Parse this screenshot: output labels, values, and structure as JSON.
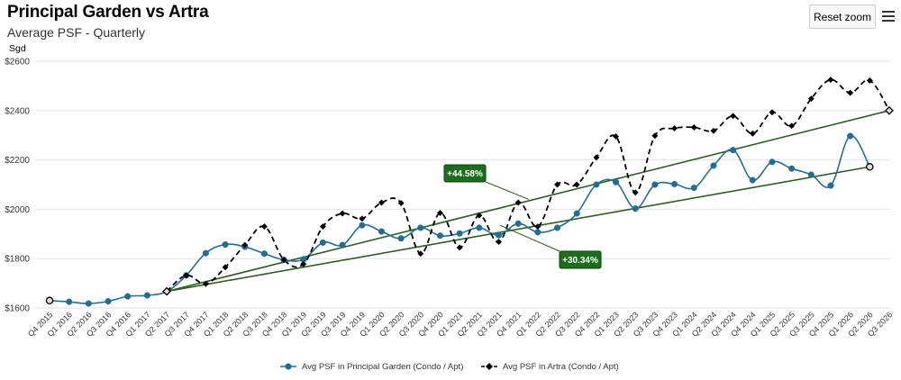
{
  "header": {
    "title": "Principal Garden vs Artra",
    "subtitle": "Average PSF - Quarterly",
    "reset_zoom_label": "Reset zoom",
    "menu_icon": "hamburger-menu-icon"
  },
  "chart_data": {
    "type": "line",
    "title": "Principal Garden vs Artra",
    "subtitle": "Average PSF - Quarterly",
    "ylabel": "Sgd",
    "xlabel": "",
    "ylim": [
      1600,
      2600
    ],
    "yticks": [
      1600,
      1800,
      2000,
      2200,
      2400,
      2600
    ],
    "ytick_labels": [
      "$1600",
      "$1800",
      "$2000",
      "$2200",
      "$2400",
      "$2600"
    ],
    "grid": true,
    "legend_position": "bottom",
    "categories": [
      "Q4 2015",
      "Q1 2016",
      "Q2 2016",
      "Q3 2016",
      "Q4 2016",
      "Q1 2017",
      "Q2 2017",
      "Q3 2017",
      "Q4 2017",
      "Q1 2018",
      "Q2 2018",
      "Q3 2018",
      "Q4 2018",
      "Q1 2019",
      "Q2 2019",
      "Q3 2019",
      "Q4 2019",
      "Q1 2020",
      "Q2 2020",
      "Q3 2020",
      "Q4 2020",
      "Q1 2021",
      "Q2 2021",
      "Q3 2021",
      "Q4 2021",
      "Q1 2022",
      "Q2 2022",
      "Q3 2022",
      "Q4 2022",
      "Q1 2023",
      "Q2 2023",
      "Q3 2023",
      "Q4 2023",
      "Q1 2024",
      "Q2 2024",
      "Q3 2024",
      "Q4 2024",
      "Q1 2025",
      "Q2 2025",
      "Q3 2025",
      "Q4 2025",
      "Q1 2026",
      "Q2 2026",
      "Q3 2026"
    ],
    "series": [
      {
        "name": "Avg PSF in Principal Garden (Condo / Apt)",
        "color": "#1f6f95",
        "dash": "solid",
        "marker": "circle",
        "values": [
          1630,
          1625,
          1618,
          1627,
          1647,
          1651,
          1667,
          1732,
          1822,
          1857,
          1848,
          1820,
          1795,
          1797,
          1865,
          1855,
          1935,
          1910,
          1882,
          1925,
          1893,
          1902,
          1925,
          1895,
          1942,
          1907,
          1925,
          1983,
          2100,
          2110,
          2003,
          2100,
          2102,
          2087,
          2177,
          2240,
          2118,
          2192,
          2165,
          2140,
          2096,
          2297,
          2172,
          null
        ]
      },
      {
        "name": "Avg PSF in Artra (Condo / Apt)",
        "color": "#000000",
        "dash": "dashed",
        "marker": "diamond",
        "values": [
          null,
          null,
          null,
          null,
          null,
          null,
          1667,
          1732,
          1698,
          1765,
          1855,
          1930,
          1795,
          1778,
          1930,
          1983,
          1962,
          2027,
          2025,
          1820,
          1985,
          1845,
          1975,
          1868,
          2027,
          1930,
          2100,
          2100,
          2210,
          2295,
          2068,
          2298,
          2328,
          2332,
          2318,
          2378,
          2307,
          2393,
          2338,
          2448,
          2525,
          2472,
          2522,
          2400
        ]
      }
    ],
    "trendlines": [
      {
        "series": "Avg PSF in Principal Garden (Condo / Apt)",
        "from": {
          "x": "Q2 2017",
          "y": 1667
        },
        "to": {
          "x": "Q2 2026",
          "y": 2172
        },
        "color": "#2d5e1e"
      },
      {
        "series": "Avg PSF in Artra (Condo / Apt)",
        "from": {
          "x": "Q2 2017",
          "y": 1667
        },
        "to": {
          "x": "Q3 2026",
          "y": 2400
        },
        "color": "#2d5e1e"
      }
    ],
    "annotations": [
      {
        "text": "+44.58%",
        "target_x": "Q1 2022",
        "target_y": 2040,
        "color": "#1b6e1b"
      },
      {
        "text": "+30.34%",
        "target_x": "Q4 2021",
        "target_y": 1935,
        "color": "#1b6e1b"
      }
    ]
  }
}
